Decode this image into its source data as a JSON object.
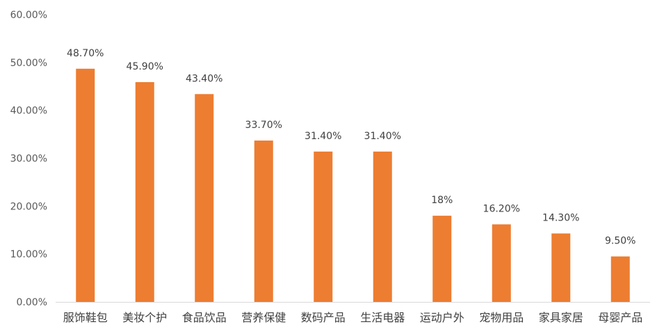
{
  "chart_data": {
    "type": "bar",
    "categories": [
      "服饰鞋包",
      "美妆个护",
      "食品饮品",
      "营养保健",
      "数码产品",
      "生活电器",
      "运动户外",
      "宠物用品",
      "家具家居",
      "母婴产品"
    ],
    "values": [
      48.7,
      45.9,
      43.4,
      33.7,
      31.4,
      31.4,
      18.0,
      16.2,
      14.3,
      9.5
    ],
    "data_labels": [
      "48.70%",
      "45.90%",
      "43.40%",
      "33.70%",
      "31.40%",
      "31.40%",
      "18%",
      "16.20%",
      "14.30%",
      "9.50%"
    ],
    "y_ticks": [
      0,
      10,
      20,
      30,
      40,
      50,
      60
    ],
    "y_tick_labels": [
      "0.00%",
      "10.00%",
      "20.00%",
      "30.00%",
      "40.00%",
      "50.00%",
      "60.00%"
    ],
    "ylim": [
      0,
      60
    ],
    "grid": false,
    "bar_color": "#ED7D31",
    "axis_color": "#D9D9D9"
  }
}
